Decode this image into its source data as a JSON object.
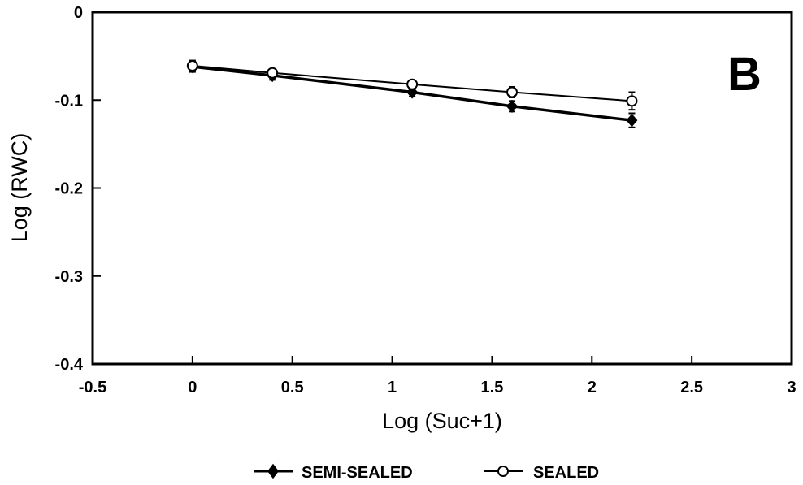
{
  "chart_data": {
    "type": "line",
    "panel_label": "B",
    "title": "",
    "xlabel": "Log (Suc+1)",
    "ylabel": "Log (RWC)",
    "xlim": [
      -0.5,
      3
    ],
    "ylim": [
      -0.4,
      0
    ],
    "x_ticks": [
      -0.5,
      0,
      0.5,
      1,
      1.5,
      2,
      2.5,
      3
    ],
    "x_tick_labels": [
      "-0.5",
      "0",
      "0.5",
      "1",
      "1.5",
      "2",
      "2.5",
      "3"
    ],
    "y_ticks": [
      0,
      -0.1,
      -0.2,
      -0.3,
      -0.4
    ],
    "y_tick_labels": [
      "0",
      "-0.1",
      "-0.2",
      "-0.3",
      "-0.4"
    ],
    "grid": false,
    "legend_position": "bottom-center",
    "x": [
      0,
      0.4,
      1.1,
      1.6,
      2.2
    ],
    "series": [
      {
        "name": "SEMI-SEALED",
        "marker": "diamond-filled",
        "color": "#000000",
        "line_width": "thick",
        "values": [
          -0.062,
          -0.072,
          -0.091,
          -0.107,
          -0.123
        ],
        "error": [
          0.006,
          0.005,
          0.005,
          0.006,
          0.008
        ]
      },
      {
        "name": "SEALED",
        "marker": "circle-open",
        "color": "#000000",
        "line_width": "thin",
        "values": [
          -0.061,
          -0.069,
          -0.082,
          -0.091,
          -0.101
        ],
        "error": [
          0.006,
          0.004,
          0.004,
          0.006,
          0.01
        ]
      }
    ]
  }
}
